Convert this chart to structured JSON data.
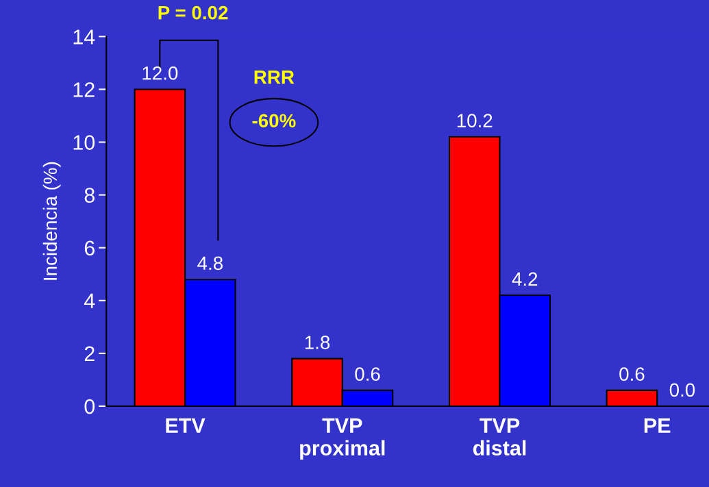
{
  "chart_data": {
    "type": "bar",
    "ylabel": "Incidencia (%)",
    "categories": [
      "ETV",
      "TVP\nproximal",
      "TVP\ndistal",
      "PE"
    ],
    "series": [
      {
        "color": "#ff0000",
        "values": [
          12.0,
          1.8,
          10.2,
          0.6
        ],
        "value_labels": [
          "12.0",
          "1.8",
          "10.2",
          "0.6"
        ]
      },
      {
        "color": "#0000ff",
        "values": [
          4.8,
          0.6,
          4.2,
          0.0
        ],
        "value_labels": [
          "4.8",
          "0.6",
          "4.2",
          "0.0"
        ]
      }
    ],
    "ylim": [
      0,
      14
    ],
    "yticks": [
      0,
      2,
      4,
      6,
      8,
      10,
      12,
      14
    ],
    "grid": false,
    "legend": false,
    "annotations": [
      "P = 0.02",
      "RRR",
      "-60%"
    ]
  }
}
